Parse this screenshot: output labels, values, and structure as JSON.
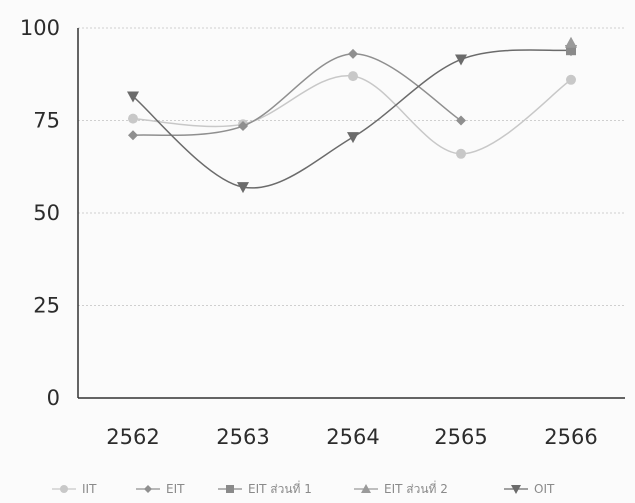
{
  "chart_data": {
    "type": "line",
    "categories": [
      "2562",
      "2563",
      "2564",
      "2565",
      "2566"
    ],
    "ylim": [
      0,
      100
    ],
    "yticks": [
      0,
      25,
      50,
      75,
      100
    ],
    "grid": true,
    "legend_position": "bottom",
    "series": [
      {
        "name": "IIT",
        "values": [
          75.5,
          74,
          87,
          66,
          86
        ],
        "color": "#c8c8c8",
        "marker": "circle"
      },
      {
        "name": "EIT",
        "values": [
          71,
          73.5,
          93,
          75,
          null
        ],
        "color": "#8f8f8f",
        "marker": "diamond"
      },
      {
        "name": "EIT ส่วนที่ 1",
        "values": [
          null,
          null,
          null,
          null,
          94
        ],
        "color": "#8a8a8a",
        "marker": "square"
      },
      {
        "name": "EIT ส่วนที่ 2",
        "values": [
          null,
          null,
          null,
          null,
          96
        ],
        "color": "#9a9a9a",
        "marker": "triangle-up"
      },
      {
        "name": "OIT",
        "values": [
          81.5,
          57,
          70.5,
          91.5,
          94
        ],
        "color": "#6b6b6b",
        "marker": "triangle-down"
      }
    ]
  }
}
